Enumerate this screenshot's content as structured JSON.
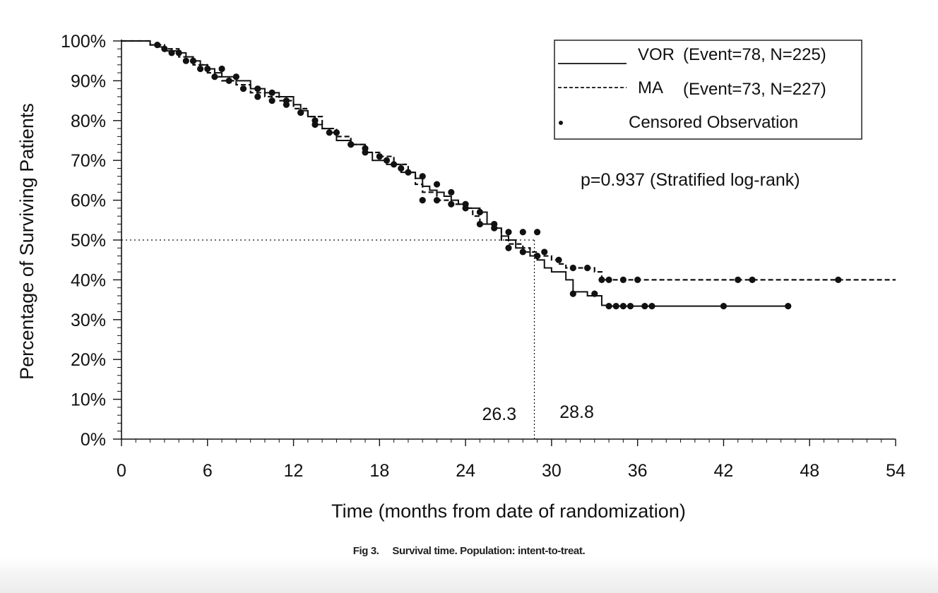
{
  "chart_data": {
    "type": "line",
    "title": "",
    "xlabel": "Time (months from date of randomization)",
    "ylabel": "Percentage of Surviving Patients",
    "xlim": [
      0,
      54
    ],
    "ylim": [
      0,
      100
    ],
    "x_ticks": [
      0,
      6,
      12,
      18,
      24,
      30,
      36,
      42,
      48,
      54
    ],
    "x_tick_labels": [
      "0",
      "6",
      "12",
      "18",
      "24",
      "30",
      "36",
      "42",
      "48",
      "54"
    ],
    "y_ticks": [
      0,
      10,
      20,
      30,
      40,
      50,
      60,
      70,
      80,
      90,
      100
    ],
    "y_tick_labels": [
      "0%",
      "10%",
      "20%",
      "30%",
      "40%",
      "50%",
      "60%",
      "70%",
      "80%",
      "90%",
      "100%"
    ],
    "grid": false,
    "legend_position": "top-right",
    "legend": [
      {
        "marker": "",
        "label": "VOR",
        "stats": "(Event=78, N=225)"
      },
      {
        "marker": "",
        "label": "MA",
        "stats": "(Event=73, N=227)"
      },
      {
        "marker": "•",
        "label": "",
        "stats": "Censored Observation"
      }
    ],
    "p_value_text": "p=0.937 (Stratified log-rank)",
    "median_reference": 50,
    "medians": [
      {
        "x": 26.3,
        "label": "26.3"
      },
      {
        "x": 28.8,
        "label": "28.8"
      }
    ],
    "series": [
      {
        "name": "VOR",
        "style": "solid",
        "step_points": [
          [
            0,
            100
          ],
          [
            1.5,
            100
          ],
          [
            2,
            99
          ],
          [
            2.5,
            98.5
          ],
          [
            3,
            97.5
          ],
          [
            4,
            97
          ],
          [
            4.5,
            96
          ],
          [
            5,
            95
          ],
          [
            5.5,
            94
          ],
          [
            6,
            93
          ],
          [
            6.5,
            92
          ],
          [
            7,
            91
          ],
          [
            8,
            90
          ],
          [
            9,
            88
          ],
          [
            10,
            87
          ],
          [
            11,
            86
          ],
          [
            12,
            84
          ],
          [
            12.5,
            82.5
          ],
          [
            13,
            81
          ],
          [
            13.5,
            79
          ],
          [
            14,
            78
          ],
          [
            14.5,
            77
          ],
          [
            15,
            75
          ],
          [
            16,
            74
          ],
          [
            17,
            72
          ],
          [
            17.5,
            70
          ],
          [
            18.5,
            69
          ],
          [
            19.5,
            67
          ],
          [
            20.5,
            65.5
          ],
          [
            21,
            63.5
          ],
          [
            21.5,
            62.5
          ],
          [
            22,
            62
          ],
          [
            22.5,
            61
          ],
          [
            23,
            60
          ],
          [
            23.5,
            59
          ],
          [
            24,
            58
          ],
          [
            25,
            57
          ],
          [
            25.5,
            54
          ],
          [
            26,
            53
          ],
          [
            26.5,
            51
          ],
          [
            27,
            50
          ],
          [
            27.5,
            48
          ],
          [
            28,
            47
          ],
          [
            28.5,
            46
          ],
          [
            29,
            45
          ],
          [
            29.5,
            43
          ],
          [
            30,
            42
          ],
          [
            31,
            40
          ],
          [
            31.5,
            37
          ],
          [
            32.5,
            36
          ],
          [
            33,
            36
          ],
          [
            33.5,
            33.6
          ],
          [
            34,
            33.4
          ],
          [
            46.5,
            33.4
          ]
        ],
        "censored": [
          [
            3,
            98
          ],
          [
            4,
            97
          ],
          [
            5,
            95
          ],
          [
            6,
            93
          ],
          [
            7,
            93
          ],
          [
            8,
            91
          ],
          [
            9.5,
            88
          ],
          [
            10.5,
            87
          ],
          [
            11.5,
            85
          ],
          [
            12.5,
            82
          ],
          [
            13.5,
            80
          ],
          [
            15,
            77
          ],
          [
            16,
            74
          ],
          [
            17,
            73
          ],
          [
            18.5,
            70
          ],
          [
            19.5,
            68
          ],
          [
            21,
            66
          ],
          [
            22,
            64
          ],
          [
            23,
            62
          ],
          [
            24,
            59
          ],
          [
            25,
            57
          ],
          [
            26,
            54
          ],
          [
            27,
            52
          ],
          [
            28,
            52
          ],
          [
            29,
            52
          ],
          [
            29.5,
            47
          ],
          [
            31.5,
            36.5
          ],
          [
            33,
            36.5
          ],
          [
            34,
            33.4
          ],
          [
            34.5,
            33.4
          ],
          [
            35,
            33.4
          ],
          [
            35.5,
            33.4
          ],
          [
            36.5,
            33.4
          ],
          [
            37,
            33.4
          ],
          [
            42,
            33.4
          ],
          [
            46.5,
            33.4
          ]
        ]
      },
      {
        "name": "MA",
        "style": "dashed",
        "step_points": [
          [
            0,
            100
          ],
          [
            1.5,
            100
          ],
          [
            2,
            99
          ],
          [
            3,
            98
          ],
          [
            4,
            96
          ],
          [
            5,
            94
          ],
          [
            6,
            92
          ],
          [
            6.5,
            91
          ],
          [
            7,
            90
          ],
          [
            8,
            89
          ],
          [
            9,
            87
          ],
          [
            10,
            86
          ],
          [
            11,
            85
          ],
          [
            12,
            83
          ],
          [
            13,
            81
          ],
          [
            14,
            78
          ],
          [
            15,
            76
          ],
          [
            16,
            74
          ],
          [
            17,
            72
          ],
          [
            18,
            71
          ],
          [
            19,
            69
          ],
          [
            20,
            67
          ],
          [
            20.5,
            64
          ],
          [
            21,
            62
          ],
          [
            22,
            60
          ],
          [
            23,
            59
          ],
          [
            24,
            58
          ],
          [
            24.5,
            56
          ],
          [
            25,
            54
          ],
          [
            26,
            53
          ],
          [
            26.5,
            50
          ],
          [
            27,
            49
          ],
          [
            28,
            48
          ],
          [
            28.5,
            47
          ],
          [
            29,
            46
          ],
          [
            30,
            45
          ],
          [
            30.5,
            44
          ],
          [
            31,
            43
          ],
          [
            33,
            42
          ],
          [
            33.5,
            40
          ],
          [
            54,
            40
          ]
        ],
        "censored": [
          [
            2.5,
            99
          ],
          [
            3.5,
            97
          ],
          [
            4.5,
            95
          ],
          [
            5.5,
            93
          ],
          [
            6.5,
            91
          ],
          [
            7.5,
            90
          ],
          [
            8.5,
            88
          ],
          [
            9.5,
            86
          ],
          [
            10.5,
            85
          ],
          [
            11.5,
            84
          ],
          [
            12.5,
            82
          ],
          [
            13.5,
            79
          ],
          [
            14.5,
            77
          ],
          [
            16,
            74
          ],
          [
            17,
            72
          ],
          [
            18,
            71
          ],
          [
            19,
            69
          ],
          [
            20,
            67
          ],
          [
            21,
            60
          ],
          [
            22,
            60
          ],
          [
            23,
            59
          ],
          [
            24,
            58
          ],
          [
            25,
            54
          ],
          [
            26,
            53
          ],
          [
            27,
            48
          ],
          [
            28,
            47
          ],
          [
            29,
            46
          ],
          [
            30.5,
            45
          ],
          [
            31.5,
            43
          ],
          [
            32.5,
            43
          ],
          [
            33.5,
            40
          ],
          [
            34,
            40
          ],
          [
            35,
            40
          ],
          [
            36,
            40
          ],
          [
            43,
            40
          ],
          [
            44,
            40
          ],
          [
            50,
            40
          ]
        ]
      }
    ]
  },
  "caption": {
    "label": "Fig 3.",
    "text": "Survival time. Population: intent-to-treat."
  }
}
